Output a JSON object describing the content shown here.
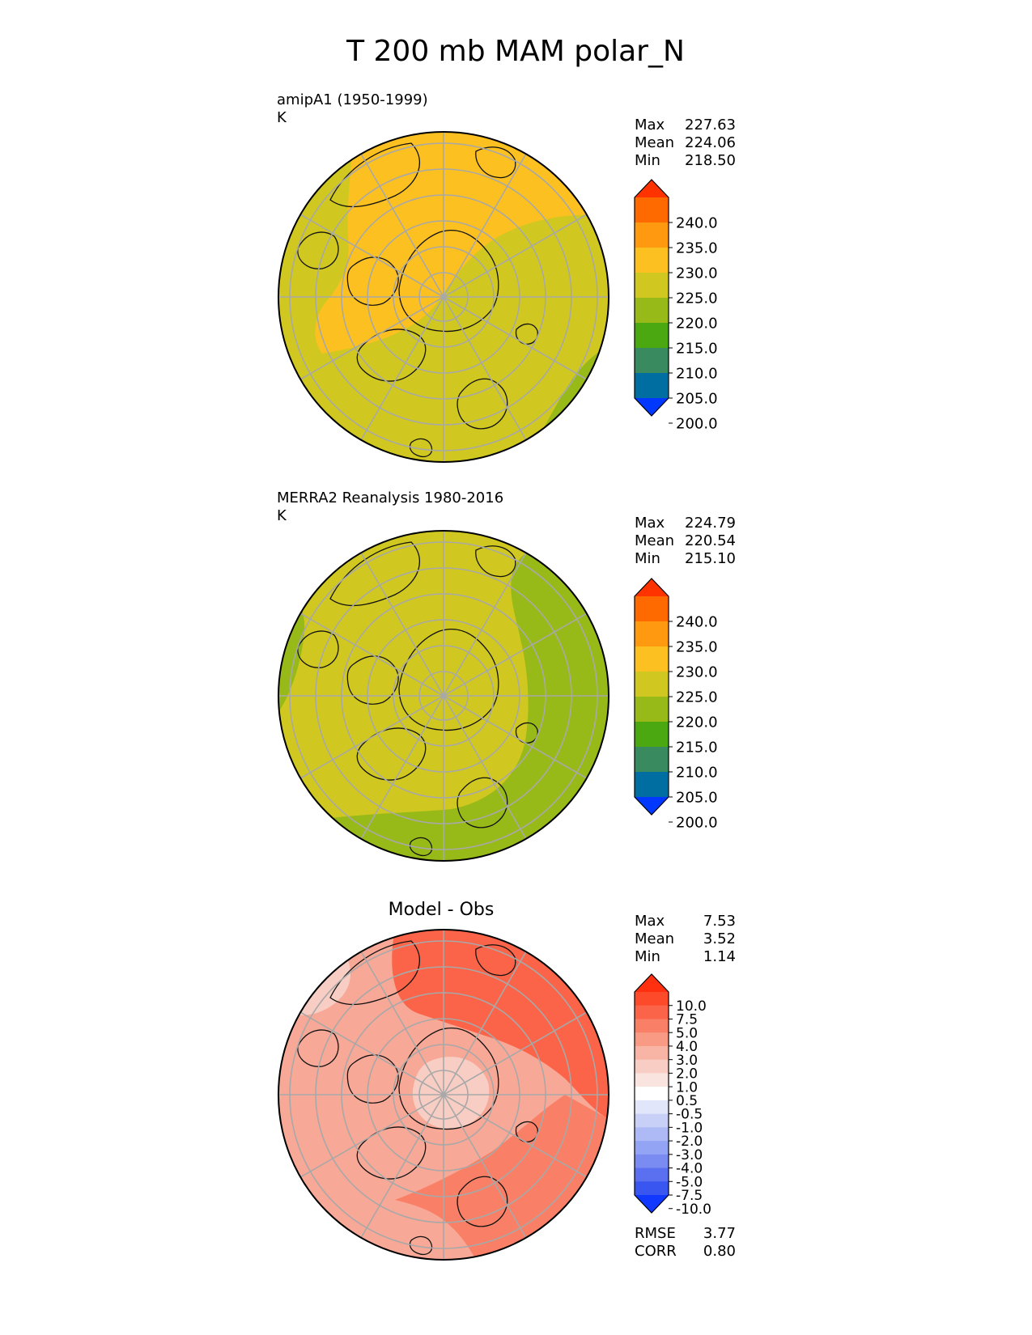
{
  "figure_title": "T 200 mb MAM polar_N",
  "chart_data": [
    {
      "type": "polar-map",
      "title": "amipA1 (1950-1999)",
      "units": "K",
      "stats": [
        {
          "label": "Max",
          "value": "227.63"
        },
        {
          "label": "Mean",
          "value": "224.06"
        },
        {
          "label": "Min",
          "value": "218.50"
        }
      ],
      "colorbar": {
        "ticks": [
          "240.0",
          "235.0",
          "230.0",
          "225.0",
          "220.0",
          "215.0",
          "210.0",
          "205.0",
          "200.0"
        ],
        "colors": [
          "#ff3300",
          "#ff6a00",
          "#ff9a10",
          "#fcc020",
          "#d0c820",
          "#98ba18",
          "#4ca810",
          "#3a8a60",
          "#006ea0",
          "#0038ff"
        ],
        "extend": "both"
      },
      "regions": [
        {
          "range": "220-225",
          "color": "#d0c820",
          "role": "background"
        },
        {
          "range": "225-230",
          "color": "#fcc020",
          "role": "warm band"
        },
        {
          "range": "215-220",
          "color": "#98ba18",
          "role": "cool edge"
        }
      ]
    },
    {
      "type": "polar-map",
      "title": "MERRA2 Reanalysis 1980-2016",
      "units": "K",
      "stats": [
        {
          "label": "Max",
          "value": "224.79"
        },
        {
          "label": "Mean",
          "value": "220.54"
        },
        {
          "label": "Min",
          "value": "215.10"
        }
      ],
      "colorbar": {
        "ticks": [
          "240.0",
          "235.0",
          "230.0",
          "225.0",
          "220.0",
          "215.0",
          "210.0",
          "205.0",
          "200.0"
        ],
        "colors": [
          "#ff3300",
          "#ff6a00",
          "#ff9a10",
          "#fcc020",
          "#d0c820",
          "#98ba18",
          "#4ca810",
          "#3a8a60",
          "#006ea0",
          "#0038ff"
        ],
        "extend": "both"
      },
      "regions": [
        {
          "range": "220-225",
          "color": "#d0c820",
          "role": "background"
        },
        {
          "range": "215-220",
          "color": "#98ba18",
          "role": "cool band"
        }
      ]
    },
    {
      "type": "polar-map",
      "title": "Model - Obs",
      "units": "",
      "stats": [
        {
          "label": "Max",
          "value": "7.53"
        },
        {
          "label": "Mean",
          "value": "3.52"
        },
        {
          "label": "Min",
          "value": "1.14"
        }
      ],
      "colorbar": {
        "ticks": [
          "10.0",
          "7.5",
          "5.0",
          "4.0",
          "3.0",
          "2.0",
          "1.0",
          "0.5",
          "-0.5",
          "-1.0",
          "-2.0",
          "-3.0",
          "-4.0",
          "-5.0",
          "-7.5",
          "-10.0"
        ],
        "colors": [
          "#ff3010",
          "#fd4a2a",
          "#fb6448",
          "#f98066",
          "#f89a84",
          "#f8b4a4",
          "#f8cec4",
          "#fae4e0",
          "#ffffff",
          "#e2e6fa",
          "#c8d0f8",
          "#aebaf6",
          "#94a4f4",
          "#7a8cf2",
          "#5a70f0",
          "#3a56f0",
          "#1038ff"
        ],
        "extend": "both"
      },
      "regions": [
        {
          "range": "3.0-4.0",
          "color": "#f8a896",
          "role": "background"
        },
        {
          "range": "4.0-5.0",
          "color": "#f98066",
          "role": "warm band"
        },
        {
          "range": "5.0-7.5",
          "color": "#fb6448",
          "role": "max band"
        },
        {
          "range": "1.0-2.0",
          "color": "#f8cec4",
          "role": "weak patch"
        }
      ],
      "extra_stats": [
        {
          "label": "RMSE",
          "value": "3.77"
        },
        {
          "label": "CORR",
          "value": "0.80"
        }
      ]
    }
  ]
}
